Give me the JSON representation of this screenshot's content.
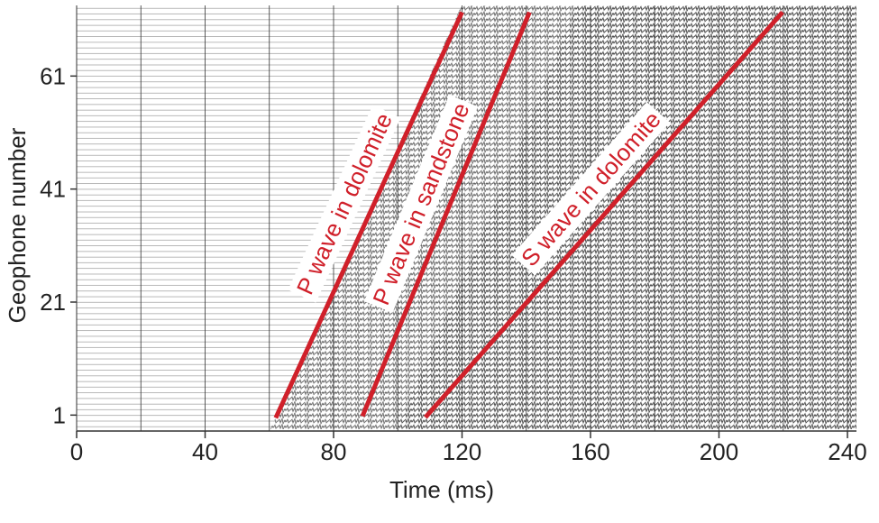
{
  "chart_data": {
    "type": "seismic-gather",
    "x_label": "Time (ms)",
    "y_label": "Geophone number",
    "xlim": [
      0,
      240
    ],
    "xticks": [
      0,
      40,
      80,
      120,
      160,
      200,
      240
    ],
    "xgrid": [
      0,
      20,
      40,
      60,
      80,
      100,
      120,
      140,
      160,
      180,
      200,
      220,
      240
    ],
    "ylim": [
      -1.5,
      73.5
    ],
    "yticks": [
      1,
      21,
      41,
      61
    ],
    "annotation_color": "#d0202a",
    "annotations": [
      {
        "text": "P wave in dolomite",
        "x": [
          62,
          120
        ],
        "y": [
          0.5,
          72.3
        ]
      },
      {
        "text": "P wave in sandstone",
        "x": [
          89,
          141
        ],
        "y": [
          0.8,
          72.3
        ]
      },
      {
        "text": "S wave in dolomite",
        "x": [
          108.6,
          219.8
        ],
        "y": [
          0.6,
          72.3
        ]
      }
    ]
  }
}
